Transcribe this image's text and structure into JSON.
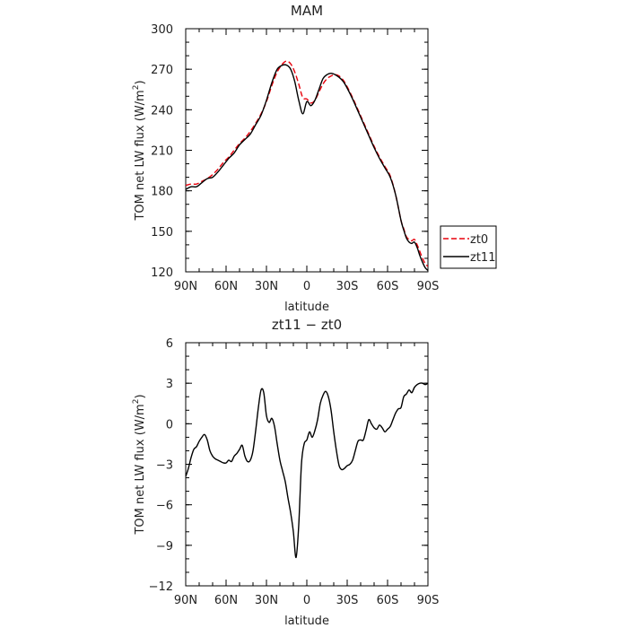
{
  "chart_data": [
    {
      "type": "line",
      "title": "MAM",
      "xlabel": "latitude",
      "ylabel": "TOM net LW flux (W/m²)",
      "ylabel_parts": {
        "base": "TOM net LW flux (W/m",
        "sup": "2",
        "close": ")"
      },
      "xlim": [
        90,
        -90
      ],
      "ylim": [
        120,
        300
      ],
      "x_ticks": [
        90,
        60,
        30,
        0,
        -30,
        -60,
        -90
      ],
      "x_tick_labels": [
        "90N",
        "60N",
        "30N",
        "0",
        "30S",
        "60S",
        "90S"
      ],
      "y_ticks": [
        120,
        150,
        180,
        210,
        240,
        270,
        300
      ],
      "y_tick_labels": [
        "120",
        "150",
        "180",
        "210",
        "240",
        "270",
        "300"
      ],
      "legend": {
        "placement": "right"
      },
      "series": [
        {
          "name": "zt0",
          "color": "#e8000b",
          "dash": "dashed",
          "x": [
            90,
            86,
            82,
            78,
            74,
            70,
            66,
            62,
            58,
            54,
            50,
            46,
            42,
            38,
            34,
            30,
            26,
            22,
            18,
            15,
            12,
            9,
            6,
            3,
            0,
            -3,
            -6,
            -9,
            -12,
            -15,
            -18,
            -21,
            -24,
            -27,
            -30,
            -34,
            -38,
            -42,
            -46,
            -50,
            -54,
            -58,
            -62,
            -66,
            -70,
            -72,
            -74,
            -76,
            -78,
            -80,
            -82,
            -84,
            -86,
            -88,
            -90
          ],
          "y": [
            184,
            185,
            185,
            187,
            189,
            192,
            196,
            201,
            205,
            210,
            215,
            219,
            224,
            230,
            237,
            246,
            258,
            268,
            274,
            276,
            274,
            268,
            259,
            249,
            248,
            245,
            247,
            253,
            259,
            263,
            265,
            266,
            265,
            262,
            257,
            249,
            240,
            231,
            222,
            213,
            205,
            198,
            191,
            177,
            158,
            152,
            146,
            144,
            143,
            144,
            140,
            135,
            130,
            126,
            124
          ]
        },
        {
          "name": "zt11",
          "color": "#000000",
          "dash": "solid",
          "x": [
            90,
            86,
            82,
            78,
            74,
            70,
            66,
            62,
            58,
            54,
            50,
            46,
            42,
            38,
            34,
            30,
            26,
            22,
            18,
            15,
            12,
            9,
            6,
            3,
            0,
            -3,
            -6,
            -9,
            -12,
            -15,
            -18,
            -21,
            -24,
            -27,
            -30,
            -34,
            -38,
            -42,
            -46,
            -50,
            -54,
            -58,
            -62,
            -66,
            -70,
            -72,
            -74,
            -76,
            -78,
            -80,
            -82,
            -84,
            -86,
            -88,
            -90
          ],
          "y": [
            181,
            183,
            183,
            186,
            189,
            190,
            194,
            199,
            204,
            208,
            214,
            218,
            222,
            229,
            236,
            247,
            260,
            270,
            273,
            273,
            270,
            261,
            247,
            237,
            246,
            243,
            247,
            255,
            263,
            266,
            267,
            266,
            264,
            261,
            256,
            248,
            239,
            230,
            221,
            212,
            204,
            197,
            190,
            177,
            158,
            151,
            145,
            142,
            141,
            142,
            138,
            132,
            127,
            123,
            121
          ]
        }
      ]
    },
    {
      "type": "line",
      "title": "zt11 − zt0",
      "xlabel": "latitude",
      "ylabel": "TOM net LW flux (W/m²)",
      "ylabel_parts": {
        "base": "TOM net LW flux (W/m",
        "sup": "2",
        "close": ")"
      },
      "xlim": [
        90,
        -90
      ],
      "ylim": [
        -12,
        6
      ],
      "x_ticks": [
        90,
        60,
        30,
        0,
        -30,
        -60,
        -90
      ],
      "x_tick_labels": [
        "90N",
        "60N",
        "30N",
        "0",
        "30S",
        "60S",
        "90S"
      ],
      "y_ticks": [
        -12,
        -9,
        -6,
        -3,
        0,
        3,
        6
      ],
      "y_tick_labels": [
        "−12",
        "−9",
        "−6",
        "−3",
        "0",
        "3",
        "6"
      ],
      "series": [
        {
          "color": "#000000",
          "dash": "solid",
          "x": [
            90,
            88,
            86,
            84,
            82,
            80,
            78,
            76,
            74,
            72,
            70,
            68,
            66,
            64,
            62,
            60,
            58,
            56,
            54,
            52,
            50,
            48,
            46,
            44,
            42,
            40,
            38,
            36,
            34,
            32,
            30,
            28,
            26,
            24,
            22,
            20,
            18,
            16,
            14,
            12,
            10,
            8,
            6,
            4,
            2,
            0,
            -2,
            -4,
            -6,
            -8,
            -10,
            -12,
            -14,
            -16,
            -18,
            -20,
            -22,
            -24,
            -26,
            -28,
            -30,
            -32,
            -34,
            -36,
            -38,
            -40,
            -42,
            -44,
            -46,
            -48,
            -50,
            -52,
            -54,
            -56,
            -58,
            -60,
            -62,
            -64,
            -66,
            -68,
            -70,
            -72,
            -74,
            -76,
            -78,
            -80,
            -82,
            -84,
            -86,
            -88,
            -90
          ],
          "y": [
            -3.9,
            -3.3,
            -2.5,
            -1.9,
            -1.7,
            -1.3,
            -1.0,
            -0.8,
            -1.2,
            -2.0,
            -2.4,
            -2.6,
            -2.7,
            -2.8,
            -2.9,
            -2.9,
            -2.7,
            -2.8,
            -2.4,
            -2.2,
            -1.9,
            -1.6,
            -2.4,
            -2.8,
            -2.7,
            -2.0,
            -0.5,
            1.2,
            2.5,
            2.3,
            0.6,
            0.1,
            0.4,
            -0.2,
            -1.5,
            -2.7,
            -3.5,
            -4.3,
            -5.5,
            -6.6,
            -8.0,
            -9.9,
            -7.5,
            -3.0,
            -1.5,
            -1.2,
            -0.6,
            -1.0,
            -0.5,
            0.3,
            1.5,
            2.1,
            2.4,
            2.0,
            1.0,
            -0.6,
            -2.0,
            -3.1,
            -3.4,
            -3.3,
            -3.1,
            -3.0,
            -2.7,
            -2.0,
            -1.3,
            -1.2,
            -1.2,
            -0.5,
            0.3,
            0.0,
            -0.3,
            -0.4,
            -0.1,
            -0.3,
            -0.6,
            -0.4,
            -0.2,
            0.3,
            0.8,
            1.1,
            1.2,
            2.0,
            2.2,
            2.5,
            2.3,
            2.7,
            2.9,
            3.0,
            3.0,
            2.9,
            3.0
          ]
        }
      ]
    }
  ]
}
